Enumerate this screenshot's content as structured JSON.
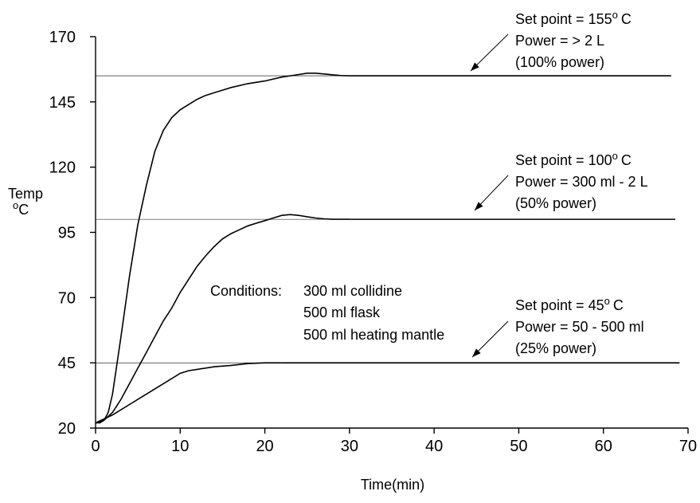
{
  "chart_data": {
    "type": "line",
    "xlabel": "Time(min)",
    "ylabel": "Temp",
    "ylabel_unit": "C",
    "ylabel_unit_prefix": "o",
    "xlim": [
      0,
      70
    ],
    "ylim": [
      20,
      170
    ],
    "xticks": [
      0,
      10,
      20,
      30,
      40,
      50,
      60,
      70
    ],
    "yticks": [
      20,
      45,
      70,
      95,
      120,
      145,
      170
    ],
    "grid": false,
    "series": [
      {
        "setpoint": 155,
        "x": [
          0,
          0.5,
          1,
          1.5,
          2,
          3,
          4,
          5,
          6,
          7,
          8,
          9,
          10,
          11,
          12,
          13,
          14,
          15,
          16,
          18,
          20,
          22,
          24,
          25,
          26,
          27,
          28,
          29,
          30,
          68
        ],
        "y": [
          22,
          22,
          23,
          26,
          33,
          55,
          78,
          98,
          113,
          126,
          134,
          139,
          142,
          144,
          146,
          147.5,
          148.5,
          149.5,
          150.5,
          152,
          153,
          154.5,
          155.5,
          156,
          156,
          155.7,
          155.4,
          155.1,
          155,
          155
        ]
      },
      {
        "setpoint": 100,
        "x": [
          0,
          1,
          2,
          3,
          4,
          5,
          6,
          7,
          8,
          9,
          10,
          11,
          12,
          13,
          14,
          15,
          16,
          17,
          18,
          19,
          20,
          21,
          22,
          23,
          24,
          25,
          26,
          27,
          28,
          30,
          68.5
        ],
        "y": [
          22,
          23,
          26,
          31,
          37,
          43,
          49,
          55,
          61,
          66,
          72,
          77,
          82,
          86,
          89.5,
          92.5,
          94.5,
          96,
          97.5,
          98.5,
          99.5,
          100.5,
          101.5,
          101.8,
          101.5,
          101,
          100.5,
          100.2,
          100,
          100,
          100
        ]
      },
      {
        "setpoint": 45,
        "x": [
          0,
          2,
          4,
          6,
          8,
          10,
          11,
          12,
          14,
          16,
          18,
          20,
          22,
          69
        ],
        "y": [
          22,
          25,
          29,
          33,
          37,
          41,
          42,
          42.5,
          43.5,
          44,
          44.7,
          45,
          45,
          45
        ]
      }
    ],
    "annotations": [
      {
        "lines": [
          "Set point = 155",
          "Power = > 2 L",
          "(100% power)"
        ],
        "superscript": "o",
        "unit": "C"
      },
      {
        "lines": [
          "Set point = 100",
          "Power = 300 ml - 2 L",
          "(50% power)"
        ],
        "superscript": "o",
        "unit": "C"
      },
      {
        "lines": [
          "Set point = 45",
          "Power = 50 - 500 ml",
          "(25% power)"
        ],
        "superscript": "o",
        "unit": "C"
      }
    ],
    "conditions": {
      "label": "Conditions:",
      "items": [
        "300 ml collidine",
        "500 ml  flask",
        "500 ml heating mantle"
      ]
    }
  }
}
